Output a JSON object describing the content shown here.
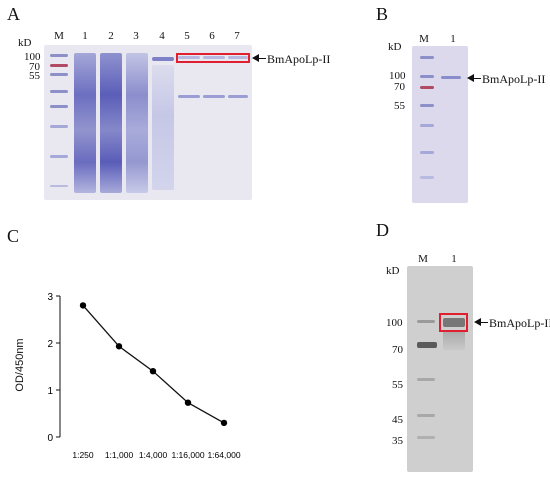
{
  "panelA": {
    "letter": "A",
    "kd_label": "kD",
    "lanes": [
      "M",
      "1",
      "2",
      "3",
      "4",
      "5",
      "6",
      "7"
    ],
    "markers": [
      "100",
      "70",
      "55"
    ],
    "protein_label": "BmApoLp-II"
  },
  "panelB": {
    "letter": "B",
    "kd_label": "kD",
    "lanes": [
      "M",
      "1"
    ],
    "markers": [
      "100",
      "70",
      "55"
    ],
    "protein_label": "BmApoLp-II"
  },
  "panelC": {
    "letter": "C"
  },
  "panelD": {
    "letter": "D",
    "kd_label": "kD",
    "lanes": [
      "M",
      "1"
    ],
    "markers": [
      "100",
      "70",
      "55",
      "45",
      "35"
    ],
    "protein_label": "BmApoLp-II"
  },
  "chart_data": {
    "type": "line",
    "categories": [
      "1:250",
      "1:1,000",
      "1:4,000",
      "1:16,000",
      "1:64,000"
    ],
    "series": [
      {
        "values": [
          2.8,
          1.93,
          1.4,
          0.73,
          0.3
        ]
      }
    ],
    "title": "",
    "xlabel": "",
    "ylabel": "OD/450nm",
    "ylim": [
      0,
      3
    ],
    "yticks": [
      0,
      1,
      2,
      3
    ],
    "grid": false,
    "color": "#000000"
  }
}
